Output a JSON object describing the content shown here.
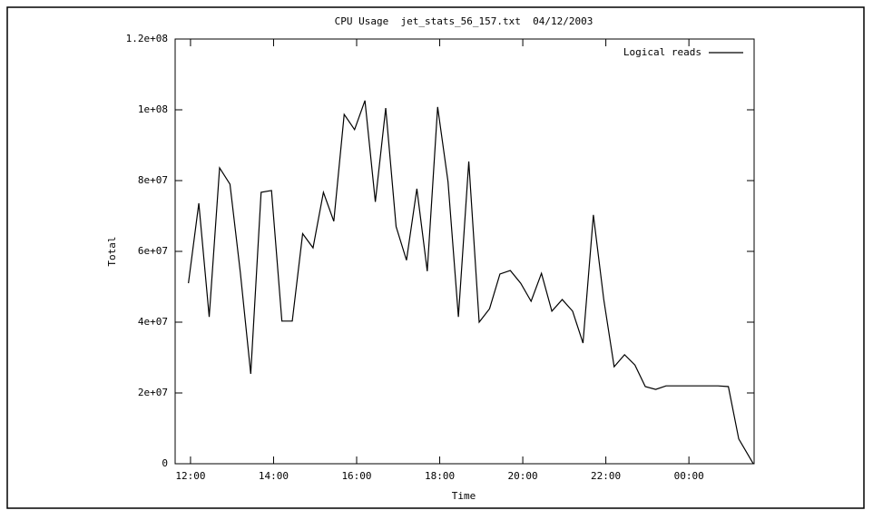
{
  "chart_data": {
    "type": "line",
    "title": "CPU Usage  jet_stats_56_157.txt  04/12/2003",
    "x_label": "Time",
    "y_label": "Total",
    "x": [
      11.95,
      12.2,
      12.45,
      12.7,
      12.95,
      13.2,
      13.45,
      13.7,
      13.95,
      14.2,
      14.45,
      14.7,
      14.95,
      15.2,
      15.45,
      15.7,
      15.95,
      16.2,
      16.45,
      16.7,
      16.95,
      17.2,
      17.45,
      17.7,
      17.95,
      18.2,
      18.45,
      18.7,
      18.95,
      19.2,
      19.45,
      19.7,
      19.95,
      20.2,
      20.45,
      20.7,
      20.95,
      21.2,
      21.45,
      21.7,
      21.95,
      22.2,
      22.45,
      22.7,
      22.95,
      23.2,
      23.45,
      23.7,
      23.95,
      24.2,
      24.45,
      24.7,
      24.95,
      25.2,
      25.55
    ],
    "series": [
      {
        "name": "Logical reads",
        "color": "#000000",
        "values": [
          51000000,
          73600000,
          41500000,
          83600000,
          79000000,
          54000000,
          25400000,
          76700000,
          77200000,
          40300000,
          40300000,
          65000000,
          61000000,
          76700000,
          68500000,
          98700000,
          94400000,
          102600000,
          74000000,
          100500000,
          67000000,
          57500000,
          77700000,
          54400000,
          100800000,
          79700000,
          41500000,
          85400000,
          40000000,
          43800000,
          53600000,
          54600000,
          51000000,
          45900000,
          53800000,
          43100000,
          46400000,
          43100000,
          34100000,
          70300000,
          46400000,
          27400000,
          30800000,
          27900000,
          21800000,
          21000000,
          22000000,
          22000000,
          22000000,
          22000000,
          22000000,
          22000000,
          21800000,
          7000000,
          0
        ]
      }
    ],
    "xlim": [
      11.63,
      25.57
    ],
    "xticks": [
      {
        "value": 12,
        "label": "12:00"
      },
      {
        "value": 14,
        "label": "14:00"
      },
      {
        "value": 16,
        "label": "16:00"
      },
      {
        "value": 18,
        "label": "18:00"
      },
      {
        "value": 20,
        "label": "20:00"
      },
      {
        "value": 22,
        "label": "22:00"
      },
      {
        "value": 24,
        "label": "00:00"
      }
    ],
    "ylim": [
      0,
      120000000
    ],
    "yticks": [
      0,
      {
        "value": 20000000,
        "label": "2e+07"
      },
      {
        "value": 40000000,
        "label": "4e+07"
      },
      {
        "value": 60000000,
        "label": "6e+07"
      },
      {
        "value": 80000000,
        "label": "8e+07"
      },
      {
        "value": 100000000,
        "label": "1e+08"
      },
      {
        "value": 120000000,
        "label": "1.2e+08"
      }
    ],
    "legend": "top-right"
  }
}
